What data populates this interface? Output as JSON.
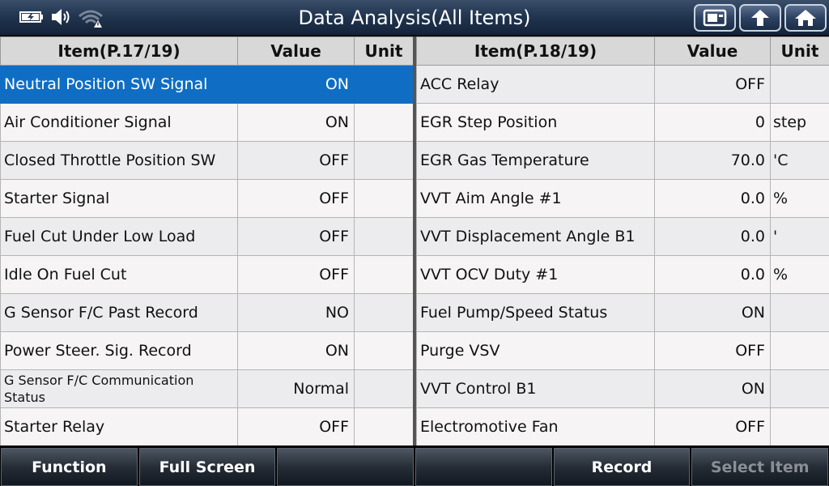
{
  "title": "Data Analysis(All Items)",
  "left_table": {
    "headers": {
      "item": "Item(P.17/19)",
      "value": "Value",
      "unit": "Unit"
    },
    "rows": [
      {
        "name": "Neutral Position SW Signal",
        "value": "ON",
        "unit": "",
        "selected": true
      },
      {
        "name": "Air Conditioner Signal",
        "value": "ON",
        "unit": ""
      },
      {
        "name": "Closed Throttle Position SW",
        "value": "OFF",
        "unit": ""
      },
      {
        "name": "Starter Signal",
        "value": "OFF",
        "unit": ""
      },
      {
        "name": "Fuel Cut Under Low Load",
        "value": "OFF",
        "unit": ""
      },
      {
        "name": "Idle On Fuel Cut",
        "value": "OFF",
        "unit": ""
      },
      {
        "name": "G Sensor F/C Past Record",
        "value": "NO",
        "unit": ""
      },
      {
        "name": "Power Steer. Sig. Record",
        "value": "ON",
        "unit": ""
      },
      {
        "name": "G Sensor F/C Communication Status",
        "value": "Normal",
        "unit": ""
      },
      {
        "name": "Starter Relay",
        "value": "OFF",
        "unit": ""
      }
    ]
  },
  "right_table": {
    "headers": {
      "item": "Item(P.18/19)",
      "value": "Value",
      "unit": "Unit"
    },
    "rows": [
      {
        "name": "ACC Relay",
        "value": "OFF",
        "unit": ""
      },
      {
        "name": "EGR Step Position",
        "value": "0",
        "unit": "step"
      },
      {
        "name": "EGR Gas Temperature",
        "value": "70.0",
        "unit": "'C"
      },
      {
        "name": "VVT Aim Angle #1",
        "value": "0.0",
        "unit": "%"
      },
      {
        "name": "VVT Displacement Angle B1",
        "value": "0.0",
        "unit": "'"
      },
      {
        "name": "VVT OCV Duty #1",
        "value": "0.0",
        "unit": "%"
      },
      {
        "name": "Fuel Pump/Speed Status",
        "value": "ON",
        "unit": ""
      },
      {
        "name": "Purge VSV",
        "value": "OFF",
        "unit": ""
      },
      {
        "name": "VVT Control B1",
        "value": "ON",
        "unit": ""
      },
      {
        "name": "Electromotive Fan",
        "value": "OFF",
        "unit": ""
      }
    ]
  },
  "toolbar": {
    "function": "Function",
    "full_screen": "Full Screen",
    "empty1": "",
    "empty2": "",
    "record": "Record",
    "select_item": "Select Item"
  },
  "icons": {
    "battery": "battery-icon",
    "speaker": "speaker-icon",
    "wifi": "wifi-warning-icon",
    "screenshot": "screenshot-icon",
    "back": "back-arrow-icon",
    "home": "home-icon"
  },
  "colors": {
    "selected_row": "#0f6ec4",
    "titlebar": "#223650"
  }
}
